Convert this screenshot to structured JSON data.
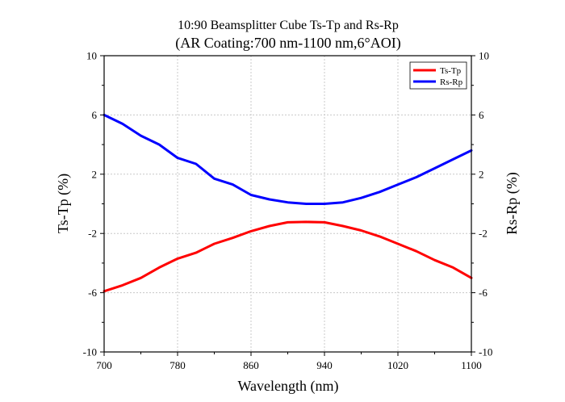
{
  "chart_data": {
    "type": "line",
    "title": "10:90 Beamsplitter Cube Ts-Tp and Rs-Rp",
    "subtitle": "(AR Coating:700 nm-1100 nm,6°AOI)",
    "xlabel": "Wavelength (nm)",
    "ylabel_left": "Ts-Tp (%)",
    "ylabel_right": "Rs-Rp (%)",
    "xlim": [
      700,
      1100
    ],
    "ylim": [
      -10,
      10
    ],
    "xticks": [
      "700",
      "780",
      "860",
      "940",
      "1020",
      "1100"
    ],
    "yticks": [
      "-10",
      "-6",
      "-2",
      "2",
      "6",
      "10"
    ],
    "grid": true,
    "legend_position": "top-right",
    "series": [
      {
        "name": "Ts-Tp",
        "color": "#ff0000",
        "x": [
          700,
          720,
          740,
          760,
          780,
          800,
          820,
          840,
          860,
          880,
          900,
          920,
          940,
          960,
          980,
          1000,
          1020,
          1040,
          1060,
          1080,
          1100
        ],
        "y": [
          -5.9,
          -5.5,
          -5.0,
          -4.3,
          -3.7,
          -3.3,
          -2.7,
          -2.3,
          -1.85,
          -1.5,
          -1.25,
          -1.22,
          -1.25,
          -1.5,
          -1.8,
          -2.2,
          -2.7,
          -3.2,
          -3.8,
          -4.3,
          -5.0
        ]
      },
      {
        "name": "Rs-Rp",
        "color": "#0000ff",
        "x": [
          700,
          720,
          740,
          760,
          780,
          800,
          820,
          840,
          860,
          880,
          900,
          920,
          940,
          960,
          980,
          1000,
          1020,
          1040,
          1060,
          1080,
          1100
        ],
        "y": [
          6.0,
          5.4,
          4.6,
          4.0,
          3.1,
          2.7,
          1.7,
          1.3,
          0.6,
          0.3,
          0.1,
          0.0,
          0.0,
          0.1,
          0.4,
          0.8,
          1.3,
          1.8,
          2.4,
          3.0,
          3.6
        ]
      }
    ]
  }
}
